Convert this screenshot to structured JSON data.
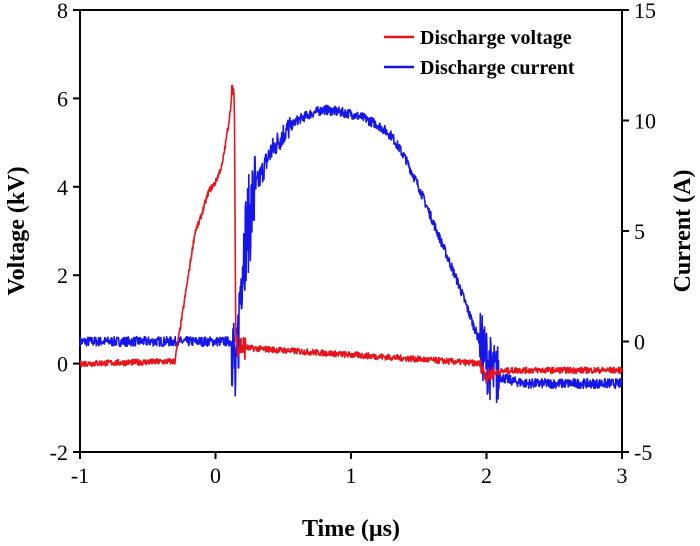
{
  "chart_data": {
    "type": "line",
    "title": "",
    "xlabel": "Time (µs)",
    "ylabel_left": "Voltage (kV)",
    "ylabel_right": "Current (A)",
    "xlim": [
      -1,
      3
    ],
    "ylim_left": [
      -2,
      8
    ],
    "ylim_right": [
      -5,
      15
    ],
    "x_ticks": [
      -1,
      0,
      1,
      2,
      3
    ],
    "y_left_ticks": [
      -2,
      0,
      2,
      4,
      6,
      8
    ],
    "y_right_ticks": [
      -5,
      0,
      5,
      10,
      15
    ],
    "grid": false,
    "legend_position": "top-right",
    "series": [
      {
        "name": "Discharge voltage",
        "axis": "left",
        "color": "#e8141b",
        "x": [
          -1.0,
          -0.3,
          -0.25,
          -0.15,
          -0.12,
          -0.08,
          -0.05,
          0.0,
          0.05,
          0.1,
          0.13,
          0.14,
          0.15,
          0.18,
          0.25,
          0.5,
          1.0,
          1.5,
          1.95,
          2.0,
          2.05,
          2.2,
          2.5,
          3.0
        ],
        "values": [
          0.0,
          0.05,
          1.0,
          3.0,
          3.2,
          3.6,
          3.9,
          4.1,
          4.5,
          5.5,
          6.3,
          5.5,
          0.5,
          0.4,
          0.35,
          0.3,
          0.2,
          0.1,
          0.0,
          -0.3,
          -0.2,
          -0.15,
          -0.15,
          -0.15
        ]
      },
      {
        "name": "Discharge current",
        "axis": "right",
        "color": "#1616e8",
        "x": [
          -1.0,
          0.13,
          0.15,
          0.18,
          0.2,
          0.25,
          0.3,
          0.4,
          0.5,
          0.6,
          0.7,
          0.8,
          0.9,
          1.0,
          1.1,
          1.2,
          1.3,
          1.4,
          1.5,
          1.6,
          1.7,
          1.8,
          1.9,
          1.95,
          2.0,
          2.05,
          2.1,
          2.2,
          2.3,
          2.5,
          3.0
        ],
        "values": [
          0.0,
          0.0,
          -2.5,
          2.0,
          4.0,
          5.5,
          7.0,
          8.5,
          9.4,
          10.0,
          10.3,
          10.5,
          10.4,
          10.3,
          10.1,
          9.8,
          9.3,
          8.3,
          7.0,
          5.5,
          4.0,
          2.5,
          0.8,
          0.0,
          -0.8,
          -1.5,
          -1.6,
          -1.8,
          -1.9,
          -1.9,
          -1.9
        ]
      }
    ]
  }
}
